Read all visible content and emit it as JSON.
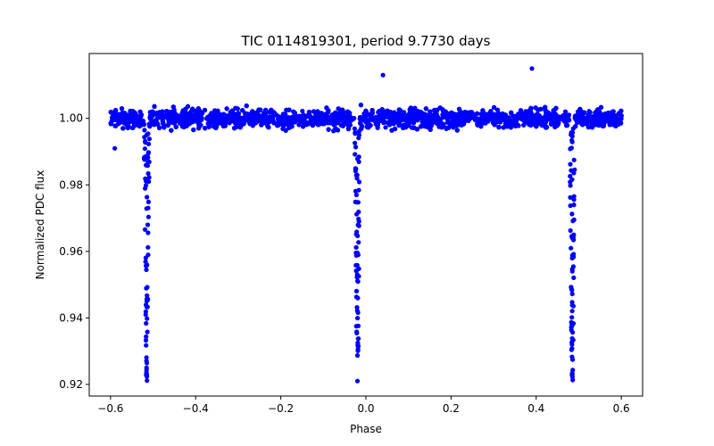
{
  "chart_data": {
    "type": "scatter",
    "title": "TIC 0114819301, period 9.7730 days",
    "xlabel": "Phase",
    "ylabel": "Normalized PDC flux",
    "xlim": [
      -0.65,
      0.65
    ],
    "ylim": [
      0.9165,
      1.0195
    ],
    "x_ticks": [
      -0.6,
      -0.4,
      -0.2,
      0.0,
      0.2,
      0.4,
      0.6
    ],
    "x_tick_labels": [
      "−0.6",
      "−0.4",
      "−0.2",
      "0.0",
      "0.2",
      "0.4",
      "0.6"
    ],
    "y_ticks": [
      0.92,
      0.94,
      0.96,
      0.98,
      1.0
    ],
    "y_tick_labels": [
      "0.92",
      "0.94",
      "0.96",
      "0.98",
      "1.00"
    ],
    "grid": false,
    "series": [
      {
        "name": "PDC flux",
        "color": "#0000ff",
        "phase_range": [
          -0.6,
          0.6
        ],
        "baseline_flux": 1.0,
        "baseline_scatter": 0.0025,
        "transit_centers": [
          -0.515,
          -0.02,
          0.485
        ],
        "transit_min_flux": 0.921,
        "transit_half_width": 0.006,
        "notable_points": [
          {
            "x": 0.39,
            "y": 1.015
          },
          {
            "x": 0.04,
            "y": 1.013
          },
          {
            "x": -0.02,
            "y": 0.921
          },
          {
            "x": -0.515,
            "y": 0.923
          },
          {
            "x": 0.485,
            "y": 0.923
          },
          {
            "x": -0.59,
            "y": 0.991
          }
        ]
      }
    ]
  }
}
